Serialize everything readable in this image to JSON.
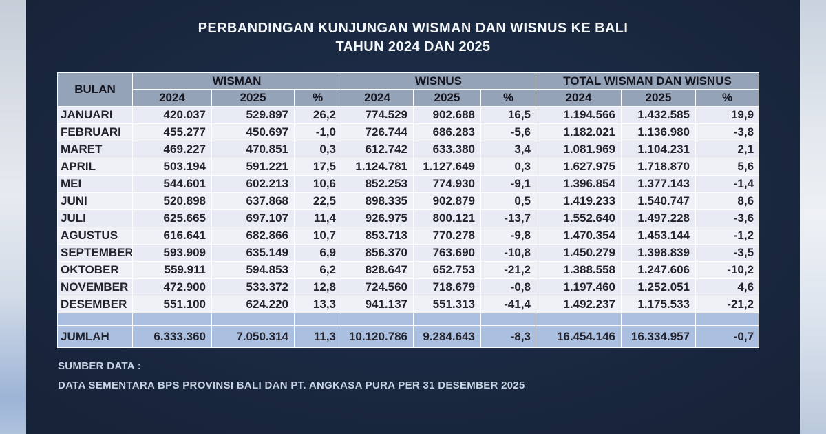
{
  "title": {
    "line1": "PERBANDINGAN KUNJUNGAN WISMAN DAN WISNUS KE BALI",
    "line2": "TAHUN 2024 DAN 2025"
  },
  "table": {
    "col_bulan": "BULAN",
    "sections": [
      "WISMAN",
      "WISNUS",
      "TOTAL WISMAN DAN WISNUS"
    ],
    "year_headers": [
      "2024",
      "2025",
      "%"
    ],
    "rows": [
      {
        "bulan": "JANUARI",
        "wisman": [
          "420.037",
          "529.897",
          "26,2"
        ],
        "wisnus": [
          "774.529",
          "902.688",
          "16,5"
        ],
        "total": [
          "1.194.566",
          "1.432.585",
          "19,9"
        ]
      },
      {
        "bulan": "FEBRUARI",
        "wisman": [
          "455.277",
          "450.697",
          "-1,0"
        ],
        "wisnus": [
          "726.744",
          "686.283",
          "-5,6"
        ],
        "total": [
          "1.182.021",
          "1.136.980",
          "-3,8"
        ]
      },
      {
        "bulan": "MARET",
        "wisman": [
          "469.227",
          "470.851",
          "0,3"
        ],
        "wisnus": [
          "612.742",
          "633.380",
          "3,4"
        ],
        "total": [
          "1.081.969",
          "1.104.231",
          "2,1"
        ]
      },
      {
        "bulan": "APRIL",
        "wisman": [
          "503.194",
          "591.221",
          "17,5"
        ],
        "wisnus": [
          "1.124.781",
          "1.127.649",
          "0,3"
        ],
        "total": [
          "1.627.975",
          "1.718.870",
          "5,6"
        ]
      },
      {
        "bulan": "MEI",
        "wisman": [
          "544.601",
          "602.213",
          "10,6"
        ],
        "wisnus": [
          "852.253",
          "774.930",
          "-9,1"
        ],
        "total": [
          "1.396.854",
          "1.377.143",
          "-1,4"
        ]
      },
      {
        "bulan": "JUNI",
        "wisman": [
          "520.898",
          "637.868",
          "22,5"
        ],
        "wisnus": [
          "898.335",
          "902.879",
          "0,5"
        ],
        "total": [
          "1.419.233",
          "1.540.747",
          "8,6"
        ]
      },
      {
        "bulan": "JULI",
        "wisman": [
          "625.665",
          "697.107",
          "11,4"
        ],
        "wisnus": [
          "926.975",
          "800.121",
          "-13,7"
        ],
        "total": [
          "1.552.640",
          "1.497.228",
          "-3,6"
        ]
      },
      {
        "bulan": "AGUSTUS",
        "wisman": [
          "616.641",
          "682.866",
          "10,7"
        ],
        "wisnus": [
          "853.713",
          "770.278",
          "-9,8"
        ],
        "total": [
          "1.470.354",
          "1.453.144",
          "-1,2"
        ]
      },
      {
        "bulan": "SEPTEMBER",
        "wisman": [
          "593.909",
          "635.149",
          "6,9"
        ],
        "wisnus": [
          "856.370",
          "763.690",
          "-10,8"
        ],
        "total": [
          "1.450.279",
          "1.398.839",
          "-3,5"
        ]
      },
      {
        "bulan": "OKTOBER",
        "wisman": [
          "559.911",
          "594.853",
          "6,2"
        ],
        "wisnus": [
          "828.647",
          "652.753",
          "-21,2"
        ],
        "total": [
          "1.388.558",
          "1.247.606",
          "-10,2"
        ]
      },
      {
        "bulan": "NOVEMBER",
        "wisman": [
          "472.900",
          "533.372",
          "12,8"
        ],
        "wisnus": [
          "724.560",
          "718.679",
          "-0,8"
        ],
        "total": [
          "1.197.460",
          "1.252.051",
          "4,6"
        ]
      },
      {
        "bulan": "DESEMBER",
        "wisman": [
          "551.100",
          "624.220",
          "13,3"
        ],
        "wisnus": [
          "941.137",
          "551.313",
          "-41,4"
        ],
        "total": [
          "1.492.237",
          "1.175.533",
          "-21,2"
        ]
      }
    ],
    "jumlah": {
      "label": "JUMLAH",
      "wisman": [
        "6.333.360",
        "7.050.314",
        "11,3"
      ],
      "wisnus": [
        "10.120.786",
        "9.284.643",
        "-8,3"
      ],
      "total": [
        "16.454.146",
        "16.334.957",
        "-0,7"
      ]
    }
  },
  "footer": {
    "line1": "SUMBER DATA :",
    "line2": "DATA SEMENTARA BPS PROVINSI BALI DAN PT. ANGKASA PURA PER 31 DESEMBER 2025"
  },
  "colors": {
    "background_navy": "#1a2840",
    "header_fill": "#95a3b8",
    "row_fill_odd": "#e8ebf3",
    "row_fill_even": "#eff1f7",
    "total_row_fill": "#abc0e1",
    "grid_line": "#fdfdfe",
    "title_text": "#f4f7fa",
    "footer_text": "#c7d3e2",
    "cell_text": "#23232d"
  },
  "chart_data": {
    "type": "table",
    "title": "PERBANDINGAN KUNJUNGAN WISMAN DAN WISNUS KE BALI TAHUN 2024 DAN 2025",
    "columns": [
      "BULAN",
      "WISMAN 2024",
      "WISMAN 2025",
      "WISMAN %",
      "WISNUS 2024",
      "WISNUS 2025",
      "WISNUS %",
      "TOTAL 2024",
      "TOTAL 2025",
      "TOTAL %"
    ],
    "rows": [
      [
        "JANUARI",
        420037,
        529897,
        26.2,
        774529,
        902688,
        16.5,
        1194566,
        1432585,
        19.9
      ],
      [
        "FEBRUARI",
        455277,
        450697,
        -1.0,
        726744,
        686283,
        -5.6,
        1182021,
        1136980,
        -3.8
      ],
      [
        "MARET",
        469227,
        470851,
        0.3,
        612742,
        633380,
        3.4,
        1081969,
        1104231,
        2.1
      ],
      [
        "APRIL",
        503194,
        591221,
        17.5,
        1124781,
        1127649,
        0.3,
        1627975,
        1718870,
        5.6
      ],
      [
        "MEI",
        544601,
        602213,
        10.6,
        852253,
        774930,
        -9.1,
        1396854,
        1377143,
        -1.4
      ],
      [
        "JUNI",
        520898,
        637868,
        22.5,
        898335,
        902879,
        0.5,
        1419233,
        1540747,
        8.6
      ],
      [
        "JULI",
        625665,
        697107,
        11.4,
        926975,
        800121,
        -13.7,
        1552640,
        1497228,
        -3.6
      ],
      [
        "AGUSTUS",
        616641,
        682866,
        10.7,
        853713,
        770278,
        -9.8,
        1470354,
        1453144,
        -1.2
      ],
      [
        "SEPTEMBER",
        593909,
        635149,
        6.9,
        856370,
        763690,
        -10.8,
        1450279,
        1398839,
        -3.5
      ],
      [
        "OKTOBER",
        559911,
        594853,
        6.2,
        828647,
        652753,
        -21.2,
        1388558,
        1247606,
        -10.2
      ],
      [
        "NOVEMBER",
        472900,
        533372,
        12.8,
        724560,
        718679,
        -0.8,
        1197460,
        1252051,
        4.6
      ],
      [
        "DESEMBER",
        551100,
        624220,
        13.3,
        941137,
        551313,
        -41.4,
        1492237,
        1175533,
        -21.2
      ],
      [
        "JUMLAH",
        6333360,
        7050314,
        11.3,
        10120786,
        9284643,
        -8.3,
        16454146,
        16334957,
        -0.7
      ]
    ]
  }
}
